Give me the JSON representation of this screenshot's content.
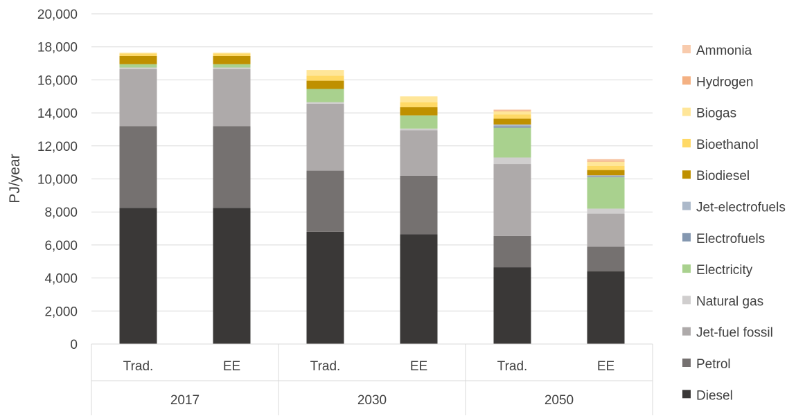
{
  "chart_data": {
    "type": "bar",
    "stacked": true,
    "ylabel": "PJ/year",
    "ylim": [
      0,
      20000
    ],
    "ytick_step": 2000,
    "ytick_labels": [
      "0",
      "2,000",
      "4,000",
      "6,000",
      "8,000",
      "10,000",
      "12,000",
      "14,000",
      "16,000",
      "18,000",
      "20,000"
    ],
    "grid": true,
    "legend_position": "right",
    "groups": [
      {
        "label": "2017",
        "categories": [
          "Trad.",
          "EE"
        ]
      },
      {
        "label": "2030",
        "categories": [
          "Trad.",
          "EE"
        ]
      },
      {
        "label": "2050",
        "categories": [
          "Trad.",
          "EE"
        ]
      }
    ],
    "series": [
      {
        "name": "Diesel",
        "color": "#3a3837",
        "values": [
          8250,
          8250,
          6800,
          6650,
          4650,
          4400
        ]
      },
      {
        "name": "Petrol",
        "color": "#757170",
        "values": [
          4950,
          4950,
          3700,
          3550,
          1900,
          1500
        ]
      },
      {
        "name": "Jet-fuel fossil",
        "color": "#aeaaaa",
        "values": [
          3450,
          3450,
          4050,
          2750,
          4350,
          2000
        ]
      },
      {
        "name": "Natural gas",
        "color": "#d0cece",
        "values": [
          100,
          100,
          100,
          100,
          400,
          300
        ]
      },
      {
        "name": "Electricity",
        "color": "#a9d18e",
        "values": [
          200,
          200,
          800,
          800,
          1800,
          1900
        ]
      },
      {
        "name": "Electrofuels",
        "color": "#8497b0",
        "values": [
          0,
          0,
          0,
          0,
          100,
          60
        ]
      },
      {
        "name": "Jet-electrofuels",
        "color": "#acb9ca",
        "values": [
          0,
          0,
          0,
          0,
          100,
          60
        ]
      },
      {
        "name": "Biodiesel",
        "color": "#bf9000",
        "values": [
          500,
          500,
          500,
          500,
          350,
          320
        ]
      },
      {
        "name": "Bioethanol",
        "color": "#ffd966",
        "values": [
          150,
          150,
          300,
          300,
          250,
          250
        ]
      },
      {
        "name": "Biogas",
        "color": "#ffe699",
        "values": [
          50,
          50,
          350,
          350,
          200,
          250
        ]
      },
      {
        "name": "Hydrogen",
        "color": "#f4b183",
        "values": [
          0,
          0,
          0,
          0,
          50,
          80
        ]
      },
      {
        "name": "Ammonia",
        "color": "#f8cbad",
        "values": [
          0,
          0,
          0,
          0,
          50,
          80
        ]
      }
    ]
  }
}
